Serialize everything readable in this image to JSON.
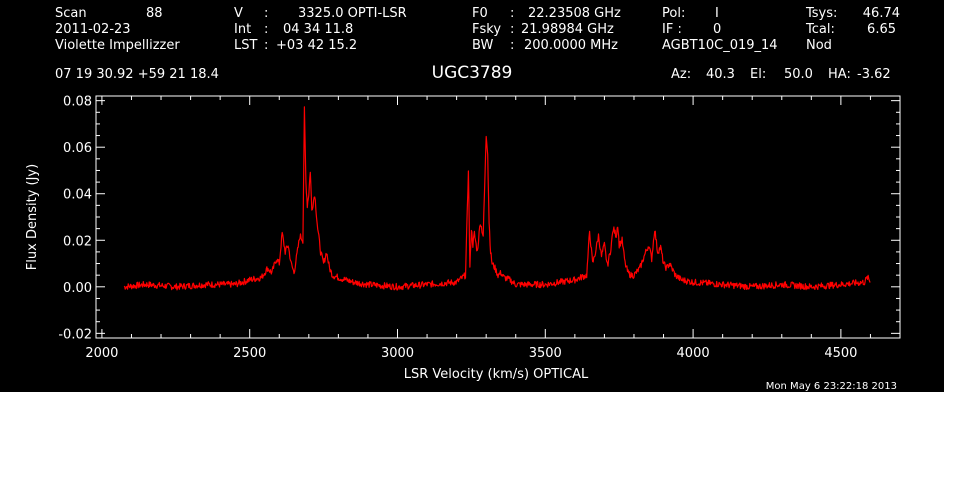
{
  "header": {
    "scan_label": "Scan",
    "scan_value": "88",
    "date": "2011-02-23",
    "observer": "Violette Impellizzer",
    "velocity_label": "V",
    "velocity_value": "3325.0 OPTI-LSR",
    "int_label": "Int",
    "int_value": "04 34 11.8",
    "lst_label": "LST",
    "lst_value": "+03 42 15.2",
    "f0_label": "F0",
    "f0_value": "22.23508 GHz",
    "fsky_label": "Fsky",
    "fsky_value": "21.98984 GHz",
    "bw_label": "BW",
    "bw_value": "200.0000 MHz",
    "pol_label": "Pol:",
    "pol_value": "I",
    "if_label": "IF :",
    "if_value": "0",
    "project": "AGBT10C_019_14",
    "tsys_label": "Tsys:",
    "tsys_value": "46.74",
    "tcal_label": "Tcal:",
    "tcal_value": "6.65",
    "proc": "Nod",
    "coords": "07 19 30.92  +59 21 18.4",
    "source": "UGC3789",
    "az_label": "Az:",
    "az_value": "40.3",
    "el_label": "El:",
    "el_value": "50.0",
    "ha_label": "HA:",
    "ha_value": "-3.62"
  },
  "timestamp": "Mon May  6 23:22:18 2013",
  "chart_data": {
    "type": "line",
    "title": "UGC3789",
    "xlabel": "LSR Velocity (km/s) OPTICAL",
    "ylabel": "Flux Density (Jy)",
    "xlim": [
      1980,
      4700
    ],
    "ylim": [
      -0.022,
      0.082
    ],
    "xticks": [
      2000,
      2500,
      3000,
      3500,
      4000,
      4500
    ],
    "xtick_labels": [
      "2000",
      "2500",
      "3000",
      "3500",
      "4000",
      "4500"
    ],
    "yticks": [
      -0.02,
      0.0,
      0.02,
      0.04,
      0.06,
      0.08
    ],
    "ytick_labels": [
      "-0.02",
      "0.00",
      "0.02",
      "0.04",
      "0.06",
      "0.08"
    ],
    "grid": false,
    "legend": "none",
    "color": "#ff0000",
    "series": [
      {
        "x": [
          2075,
          2150,
          2250,
          2350,
          2450,
          2500,
          2540,
          2560,
          2575,
          2590,
          2600,
          2610,
          2620,
          2630,
          2640,
          2650,
          2660,
          2670,
          2680,
          2685,
          2690,
          2695,
          2700,
          2705,
          2710,
          2720,
          2730,
          2740,
          2750,
          2760,
          2770,
          2780,
          2800,
          2850,
          2900,
          3000,
          3100,
          3200,
          3230,
          3240,
          3245,
          3250,
          3255,
          3260,
          3270,
          3280,
          3290,
          3300,
          3305,
          3310,
          3315,
          3320,
          3330,
          3340,
          3350,
          3360,
          3380,
          3400,
          3450,
          3500,
          3550,
          3600,
          3640,
          3650,
          3660,
          3670,
          3680,
          3690,
          3700,
          3710,
          3720,
          3730,
          3740,
          3745,
          3750,
          3760,
          3770,
          3780,
          3790,
          3800,
          3820,
          3840,
          3850,
          3860,
          3870,
          3880,
          3890,
          3900,
          3910,
          3920,
          3940,
          3960,
          4000,
          4100,
          4200,
          4300,
          4400,
          4500,
          4580,
          4590,
          4600
        ],
        "y": [
          0.0,
          0.001,
          0.0,
          0.001,
          0.001,
          0.003,
          0.004,
          0.008,
          0.006,
          0.012,
          0.01,
          0.023,
          0.015,
          0.018,
          0.01,
          0.006,
          0.014,
          0.022,
          0.02,
          0.076,
          0.045,
          0.035,
          0.04,
          0.05,
          0.033,
          0.04,
          0.025,
          0.015,
          0.01,
          0.015,
          0.008,
          0.005,
          0.004,
          0.002,
          0.001,
          0.0,
          0.001,
          0.002,
          0.005,
          0.051,
          0.008,
          0.025,
          0.018,
          0.023,
          0.015,
          0.028,
          0.022,
          0.065,
          0.058,
          0.028,
          0.015,
          0.01,
          0.008,
          0.005,
          0.006,
          0.004,
          0.003,
          0.001,
          0.001,
          0.001,
          0.002,
          0.003,
          0.005,
          0.024,
          0.01,
          0.015,
          0.022,
          0.013,
          0.018,
          0.009,
          0.015,
          0.025,
          0.022,
          0.027,
          0.018,
          0.02,
          0.01,
          0.006,
          0.005,
          0.005,
          0.008,
          0.015,
          0.018,
          0.012,
          0.025,
          0.015,
          0.017,
          0.01,
          0.008,
          0.01,
          0.005,
          0.003,
          0.002,
          0.001,
          0.0,
          0.001,
          0.0,
          0.001,
          0.002,
          0.004,
          0.002
        ]
      }
    ]
  }
}
